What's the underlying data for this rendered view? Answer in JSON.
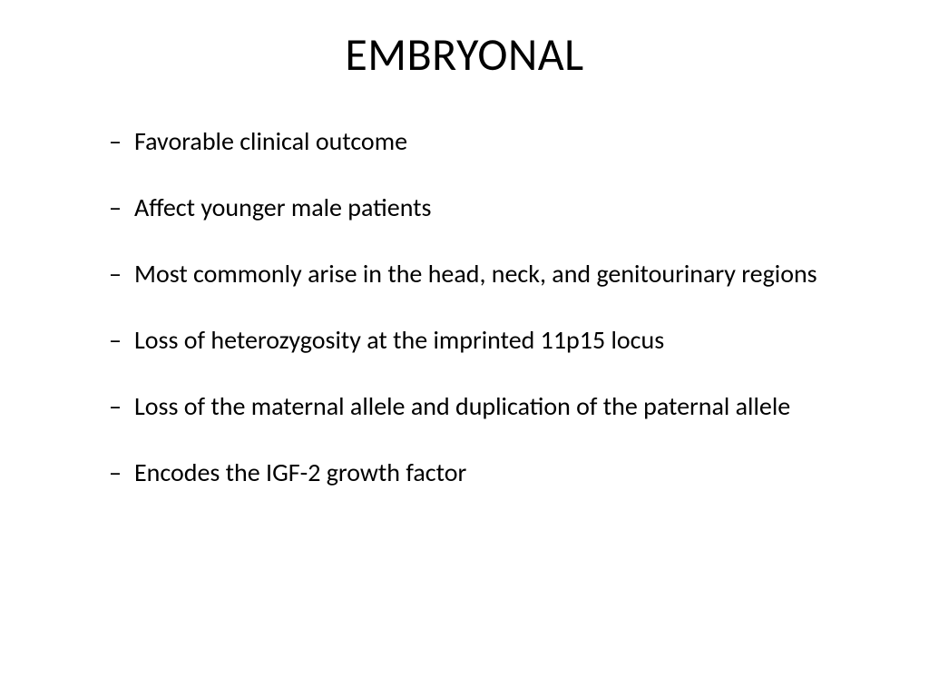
{
  "slide": {
    "title": "EMBRYONAL",
    "bullets": [
      "Favorable clinical outcome",
      "Affect younger male patients",
      "Most commonly arise in the head, neck, and genitourinary regions",
      "Loss of heterozygosity at the imprinted 11p15 locus",
      "Loss of the maternal allele and duplication of the paternal allele",
      "Encodes the IGF-2 growth factor"
    ]
  },
  "style": {
    "background_color": "#ffffff",
    "text_color": "#000000",
    "title_fontsize": 50,
    "bullet_fontsize": 28,
    "font_family": "Calibri"
  }
}
